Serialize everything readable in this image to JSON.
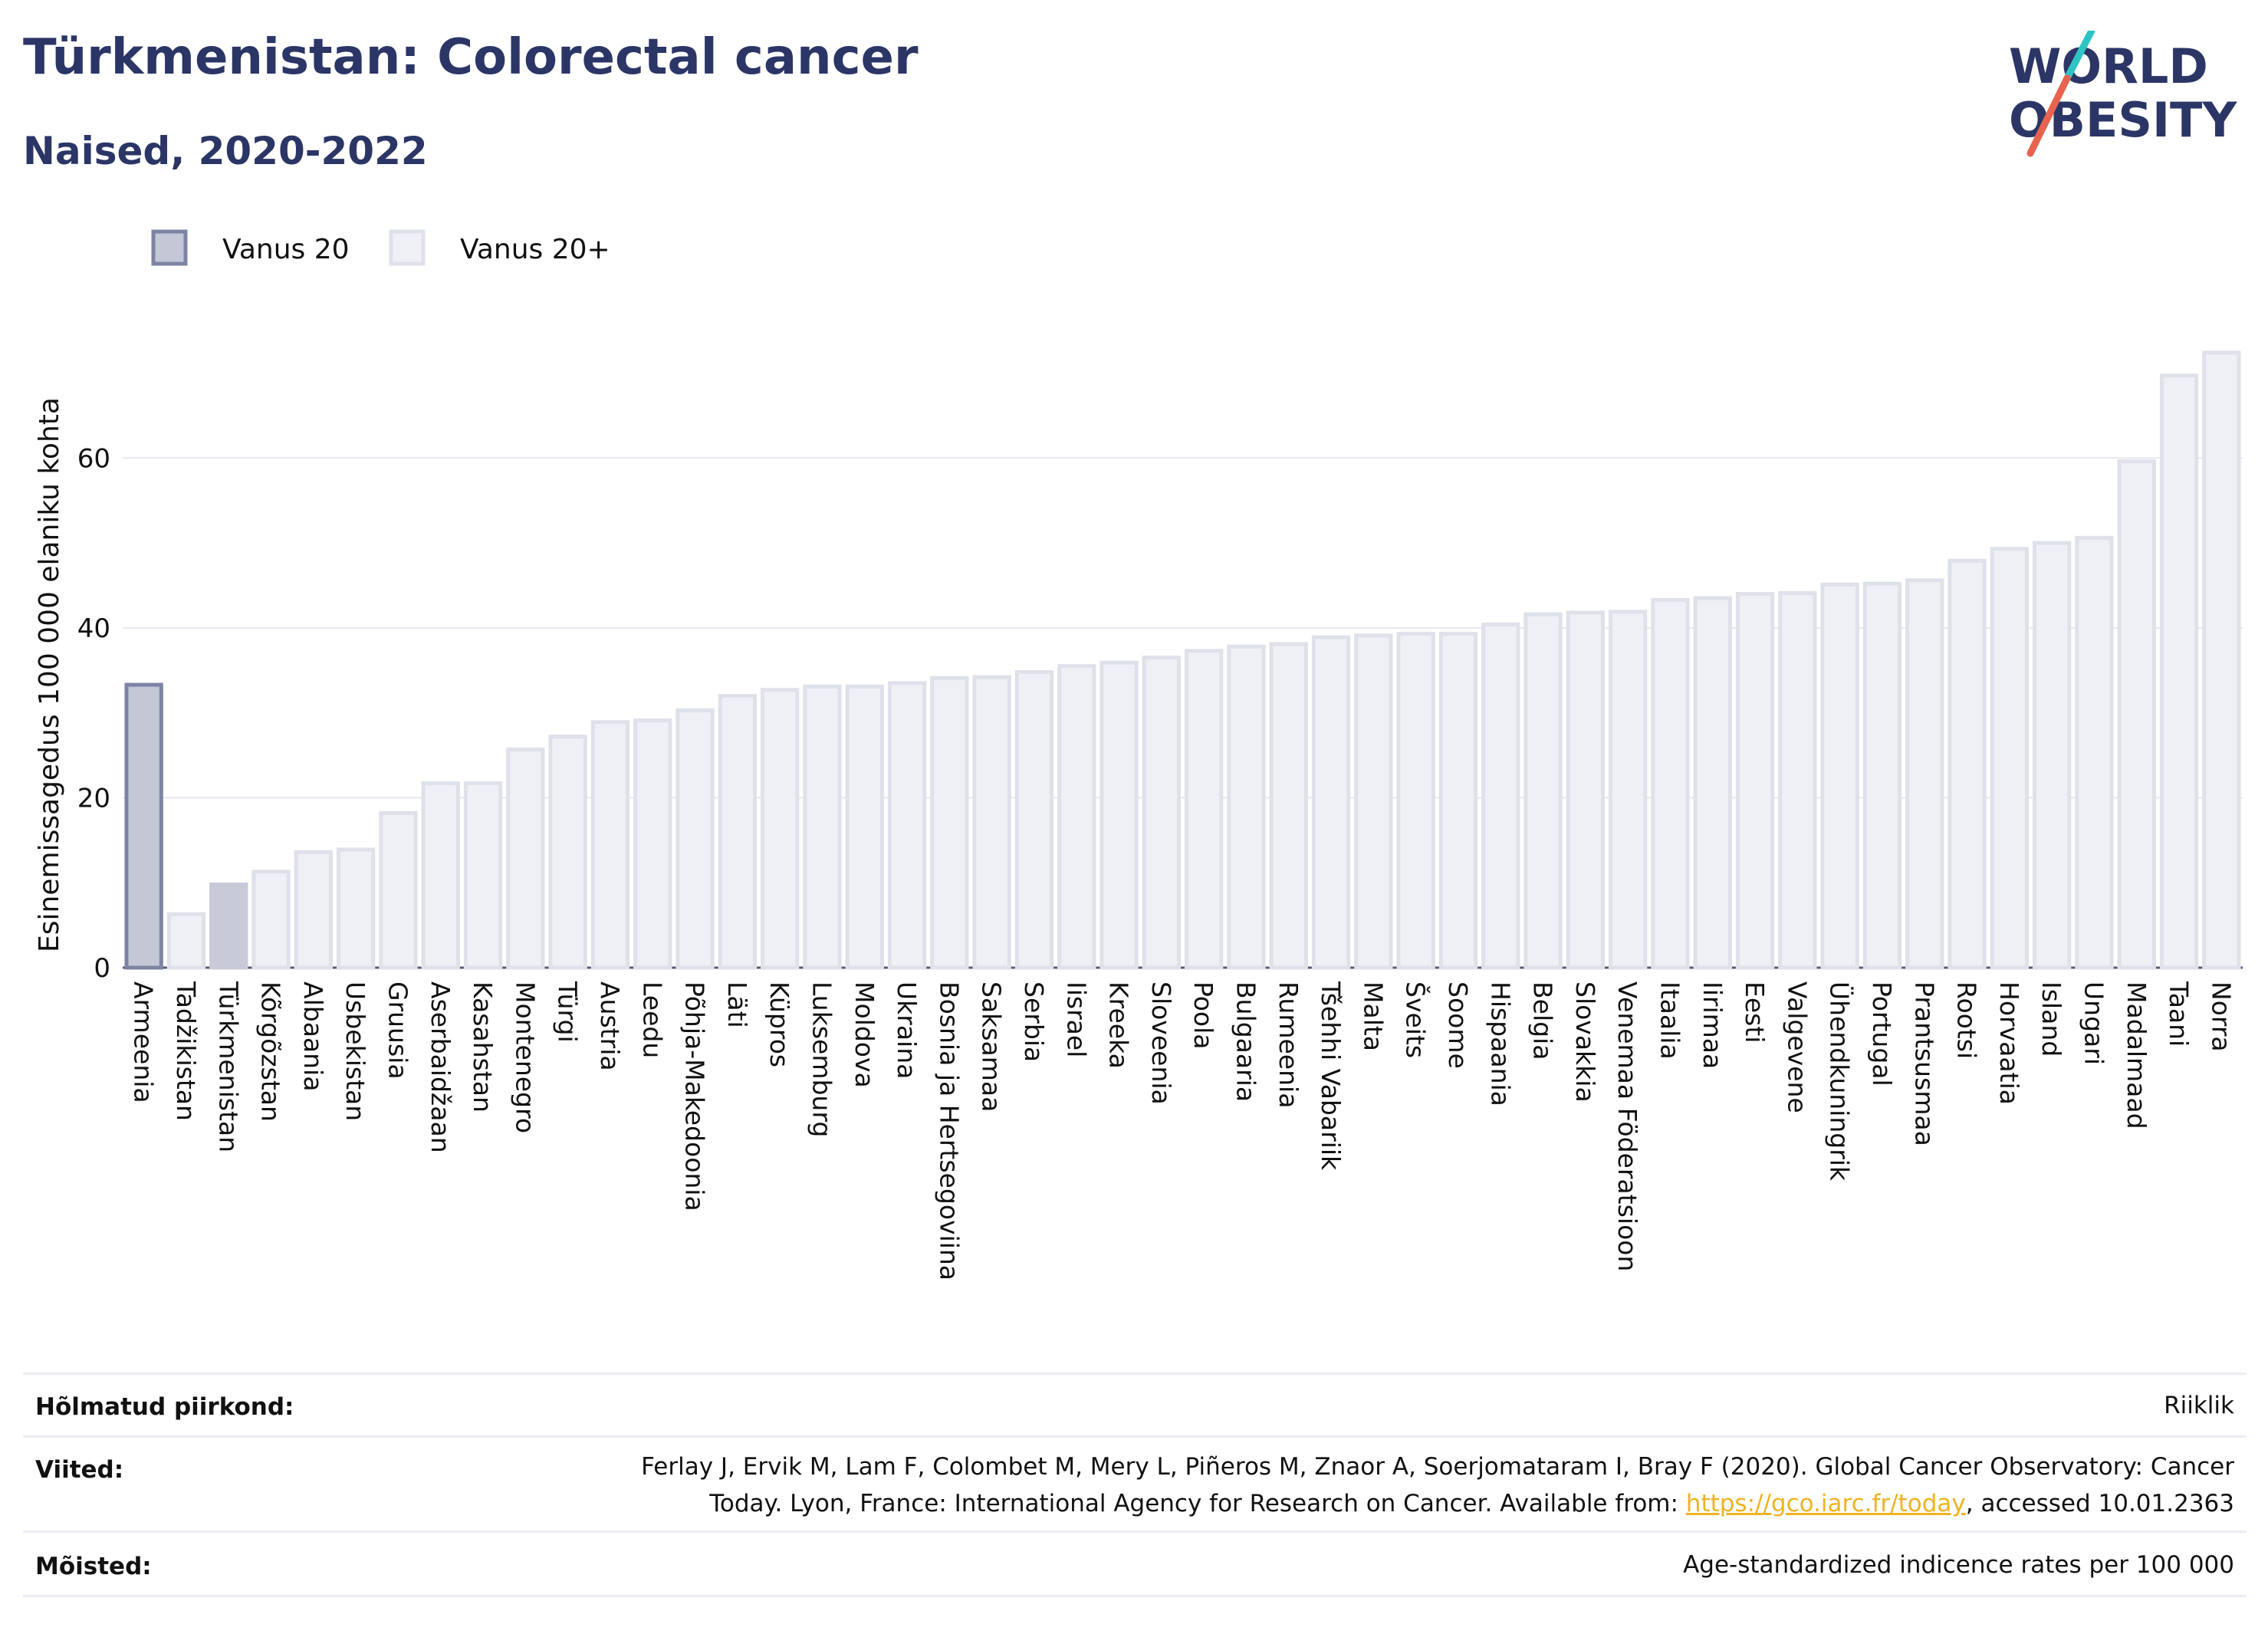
{
  "header": {
    "title": "Türkmenistan: Colorectal cancer",
    "subtitle": "Naised, 2020-2022"
  },
  "logo": {
    "line1": "WORLD",
    "line2": "OBESITY"
  },
  "colors": {
    "highlight_fill": "#c4c7d6",
    "highlight_stroke": "#7d84a3",
    "bar_fill": "#eff0f5",
    "bar_stroke": "#dfe1ea",
    "selected_fill": "#c8cad8",
    "text": "#2b3566",
    "logo_teal": "#2ec4c4",
    "logo_red": "#e8634f"
  },
  "chart_data": {
    "type": "bar",
    "ylabel": "Esinemissagedus 100 000 elaniku kohta",
    "ylim": [
      0,
      76
    ],
    "yticks": [
      0,
      20,
      40,
      60
    ],
    "grid": true,
    "legend": [
      {
        "label": "Vanus 20",
        "style": "highlight"
      },
      {
        "label": "Vanus 20+",
        "style": "normal"
      }
    ],
    "legend_position": "top-left",
    "highlight_index": 0,
    "selected_index": 2,
    "categories": [
      "Armeenia",
      "Tadžikistan",
      "Türkmenistan",
      "Kõrgõzstan",
      "Albaania",
      "Usbekistan",
      "Gruusia",
      "Aserbaidžaan",
      "Kasahstan",
      "Montenegro",
      "Türgi",
      "Austria",
      "Leedu",
      "Põhja-Makedoonia",
      "Läti",
      "Küpros",
      "Luksemburg",
      "Moldova",
      "Ukraina",
      "Bosnia ja Hertsegoviina",
      "Saksamaa",
      "Serbia",
      "Iisrael",
      "Kreeka",
      "Sloveenia",
      "Poola",
      "Bulgaaria",
      "Rumeenia",
      "Tšehhi Vabariik",
      "Malta",
      "Šveits",
      "Soome",
      "Hispaania",
      "Belgia",
      "Slovakkia",
      "Venemaa Föderatsioon",
      "Itaalia",
      "Iirimaa",
      "Eesti",
      "Valgevene",
      "Ühendkuningrik",
      "Portugal",
      "Prantsusmaa",
      "Rootsi",
      "Horvaatia",
      "Island",
      "Ungari",
      "Madalmaad",
      "Taani",
      "Norra"
    ],
    "values": [
      33.3,
      6.3,
      9.8,
      11.3,
      13.6,
      13.9,
      18.2,
      21.7,
      21.7,
      25.7,
      27.2,
      28.9,
      29.1,
      30.3,
      32.0,
      32.7,
      33.1,
      33.1,
      33.5,
      34.1,
      34.2,
      34.8,
      35.5,
      35.9,
      36.5,
      37.3,
      37.8,
      38.1,
      38.9,
      39.1,
      39.3,
      39.3,
      40.4,
      41.6,
      41.8,
      41.9,
      43.3,
      43.5,
      44.0,
      44.1,
      45.1,
      45.2,
      45.6,
      47.9,
      49.3,
      50.0,
      50.6,
      59.6,
      69.7,
      72.4
    ]
  },
  "info": {
    "region_label": "Hõlmatud piirkond:",
    "region_value": "Riiklik",
    "refs_label": "Viited:",
    "refs_line1": "Ferlay J, Ervik M, Lam F, Colombet M, Mery L, Piñeros M, Znaor A, Soerjomataram I, Bray F (2020). Global Cancer Observatory: Cancer",
    "refs_line2_pre": "Today. Lyon, France: International Agency for Research on Cancer. Available from: ",
    "refs_link": "https://gco.iarc.fr/today",
    "refs_line2_post": ", accessed 10.01.2363",
    "def_label": "Mõisted:",
    "def_value": "Age-standardized indicence rates per 100 000"
  }
}
